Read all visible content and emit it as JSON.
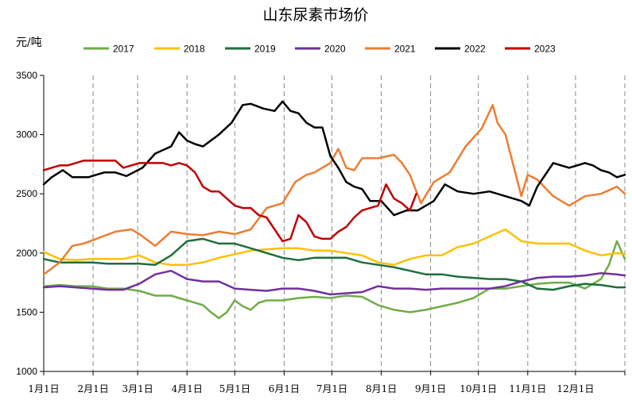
{
  "chart_data": {
    "type": "line",
    "title": "山东尿素市场价",
    "ylabel": "元/吨",
    "xlabel": "",
    "ylim": [
      1000,
      3500
    ],
    "yticks": [
      1000,
      1500,
      2000,
      2500,
      3000,
      3500
    ],
    "xlim": [
      0,
      365
    ],
    "x_tick_labels": [
      "1月1日",
      "2月1日",
      "3月1日",
      "4月1日",
      "5月1日",
      "6月1日",
      "7月1日",
      "8月1日",
      "9月1日",
      "10月1日",
      "11月1日",
      "12月1日"
    ],
    "x_tick_days": [
      0,
      31,
      59,
      90,
      120,
      151,
      181,
      212,
      243,
      273,
      304,
      334
    ],
    "grid": "vertical dashed",
    "legend_position": "top",
    "series": [
      {
        "name": "2017",
        "color": "#70AD47",
        "x": [
          0,
          10,
          20,
          30,
          40,
          50,
          60,
          70,
          80,
          90,
          100,
          105,
          110,
          115,
          120,
          125,
          130,
          135,
          140,
          150,
          160,
          170,
          180,
          190,
          200,
          210,
          220,
          230,
          240,
          250,
          260,
          270,
          280,
          290,
          300,
          310,
          320,
          330,
          340,
          350,
          355,
          360,
          365
        ],
        "values": [
          1720,
          1730,
          1720,
          1720,
          1700,
          1700,
          1680,
          1640,
          1640,
          1600,
          1560,
          1500,
          1450,
          1500,
          1600,
          1550,
          1520,
          1580,
          1600,
          1600,
          1620,
          1630,
          1620,
          1640,
          1630,
          1560,
          1520,
          1500,
          1520,
          1550,
          1580,
          1620,
          1700,
          1700,
          1720,
          1740,
          1750,
          1750,
          1700,
          1780,
          1900,
          2100,
          1950
        ]
      },
      {
        "name": "2018",
        "color": "#FFC000",
        "x": [
          0,
          10,
          20,
          30,
          40,
          50,
          60,
          70,
          80,
          90,
          100,
          110,
          120,
          130,
          140,
          150,
          160,
          170,
          180,
          190,
          200,
          210,
          220,
          230,
          240,
          250,
          260,
          270,
          280,
          290,
          300,
          310,
          320,
          330,
          340,
          350,
          360,
          365
        ],
        "values": [
          2010,
          1950,
          1940,
          1950,
          1950,
          1950,
          1980,
          1920,
          1900,
          1900,
          1920,
          1960,
          1990,
          2020,
          2030,
          2040,
          2040,
          2020,
          2020,
          2000,
          1980,
          1920,
          1900,
          1950,
          1980,
          1980,
          2050,
          2080,
          2140,
          2200,
          2100,
          2080,
          2080,
          2080,
          2020,
          1980,
          2000,
          1990
        ]
      },
      {
        "name": "2019",
        "color": "#1E6E3C",
        "x": [
          0,
          10,
          20,
          30,
          40,
          50,
          60,
          70,
          80,
          90,
          100,
          110,
          120,
          130,
          140,
          150,
          160,
          170,
          180,
          190,
          200,
          210,
          220,
          230,
          240,
          250,
          260,
          270,
          280,
          290,
          300,
          310,
          320,
          330,
          340,
          350,
          360,
          365
        ],
        "values": [
          1950,
          1920,
          1920,
          1920,
          1910,
          1910,
          1910,
          1900,
          1980,
          2100,
          2120,
          2080,
          2080,
          2040,
          2000,
          1960,
          1940,
          1960,
          1960,
          1960,
          1920,
          1900,
          1880,
          1850,
          1820,
          1820,
          1800,
          1790,
          1780,
          1780,
          1760,
          1700,
          1690,
          1720,
          1740,
          1730,
          1710,
          1710
        ]
      },
      {
        "name": "2020",
        "color": "#7030A0",
        "x": [
          0,
          10,
          20,
          30,
          40,
          50,
          60,
          70,
          80,
          90,
          100,
          110,
          120,
          130,
          140,
          150,
          160,
          170,
          180,
          190,
          200,
          210,
          220,
          230,
          240,
          250,
          260,
          270,
          280,
          290,
          300,
          310,
          320,
          330,
          340,
          350,
          360,
          365
        ],
        "values": [
          1710,
          1720,
          1710,
          1700,
          1690,
          1690,
          1740,
          1820,
          1850,
          1780,
          1760,
          1760,
          1700,
          1690,
          1680,
          1700,
          1700,
          1680,
          1650,
          1660,
          1670,
          1720,
          1700,
          1700,
          1690,
          1700,
          1700,
          1700,
          1700,
          1720,
          1760,
          1790,
          1800,
          1800,
          1810,
          1830,
          1820,
          1810
        ]
      },
      {
        "name": "2021",
        "color": "#ED7D31",
        "x": [
          0,
          10,
          18,
          25,
          35,
          45,
          55,
          60,
          70,
          80,
          90,
          100,
          110,
          120,
          130,
          140,
          150,
          158,
          165,
          170,
          180,
          185,
          190,
          195,
          200,
          210,
          220,
          225,
          230,
          237,
          245,
          255,
          265,
          275,
          282,
          285,
          290,
          300,
          304,
          310,
          320,
          330,
          340,
          350,
          360,
          365
        ],
        "values": [
          1820,
          1920,
          2060,
          2080,
          2130,
          2180,
          2200,
          2160,
          2060,
          2180,
          2160,
          2150,
          2180,
          2160,
          2200,
          2380,
          2420,
          2600,
          2660,
          2680,
          2760,
          2880,
          2720,
          2700,
          2800,
          2800,
          2830,
          2760,
          2660,
          2420,
          2600,
          2680,
          2900,
          3050,
          3250,
          3100,
          3000,
          2480,
          2660,
          2620,
          2480,
          2400,
          2480,
          2500,
          2560,
          2500
        ]
      },
      {
        "name": "2022",
        "color": "#000000",
        "x": [
          0,
          5,
          12,
          18,
          28,
          38,
          45,
          52,
          62,
          70,
          80,
          85,
          90,
          95,
          100,
          110,
          118,
          125,
          130,
          138,
          145,
          150,
          155,
          160,
          165,
          170,
          175,
          180,
          185,
          190,
          195,
          200,
          205,
          212,
          220,
          228,
          235,
          245,
          252,
          260,
          270,
          280,
          290,
          300,
          305,
          310,
          320,
          330,
          340,
          345,
          350,
          355,
          360,
          365
        ],
        "values": [
          2580,
          2640,
          2700,
          2640,
          2640,
          2680,
          2680,
          2650,
          2720,
          2840,
          2900,
          3020,
          2950,
          2920,
          2900,
          3000,
          3100,
          3250,
          3260,
          3220,
          3200,
          3280,
          3200,
          3180,
          3100,
          3060,
          3060,
          2820,
          2720,
          2600,
          2560,
          2540,
          2440,
          2440,
          2320,
          2360,
          2360,
          2440,
          2580,
          2520,
          2500,
          2520,
          2480,
          2440,
          2400,
          2560,
          2760,
          2720,
          2760,
          2740,
          2700,
          2680,
          2640,
          2660
        ]
      },
      {
        "name": "2023",
        "color": "#C00000",
        "x": [
          0,
          5,
          10,
          15,
          20,
          25,
          30,
          35,
          40,
          45,
          50,
          55,
          60,
          65,
          70,
          75,
          80,
          85,
          90,
          95,
          100,
          105,
          110,
          115,
          120,
          125,
          130,
          135,
          140,
          145,
          150,
          155,
          160,
          165,
          170,
          175,
          180,
          185,
          190,
          195,
          200,
          205,
          210,
          215,
          220,
          225,
          230,
          234
        ],
        "values": [
          2700,
          2720,
          2740,
          2740,
          2760,
          2780,
          2780,
          2780,
          2780,
          2780,
          2720,
          2740,
          2760,
          2760,
          2760,
          2760,
          2740,
          2760,
          2740,
          2680,
          2560,
          2520,
          2520,
          2460,
          2400,
          2380,
          2380,
          2320,
          2300,
          2200,
          2100,
          2120,
          2320,
          2260,
          2140,
          2120,
          2120,
          2180,
          2220,
          2300,
          2360,
          2380,
          2400,
          2580,
          2460,
          2420,
          2360,
          2500
        ]
      }
    ]
  }
}
